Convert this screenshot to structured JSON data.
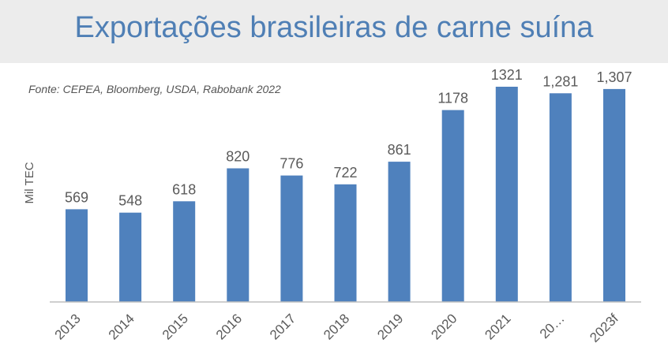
{
  "chart_data": {
    "type": "bar",
    "title": "Exportações brasileiras de carne suína",
    "source": "Fonte: CEPEA, Bloomberg, USDA, Rabobank 2022",
    "ylabel": "Mil TEC",
    "xlabel": "",
    "categories": [
      "2013",
      "2014",
      "2015",
      "2016",
      "2017",
      "2018",
      "2019",
      "2020",
      "2021",
      "20…",
      "2023f"
    ],
    "values": [
      569,
      548,
      618,
      820,
      776,
      722,
      861,
      1178,
      1321,
      1281,
      1307
    ],
    "value_labels": [
      "569",
      "548",
      "618",
      "820",
      "776",
      "722",
      "861",
      "1178",
      "1321",
      "1,281",
      "1,307"
    ],
    "ylim": [
      0,
      1321
    ],
    "grid": false,
    "bar_color": "#4f81bd"
  }
}
